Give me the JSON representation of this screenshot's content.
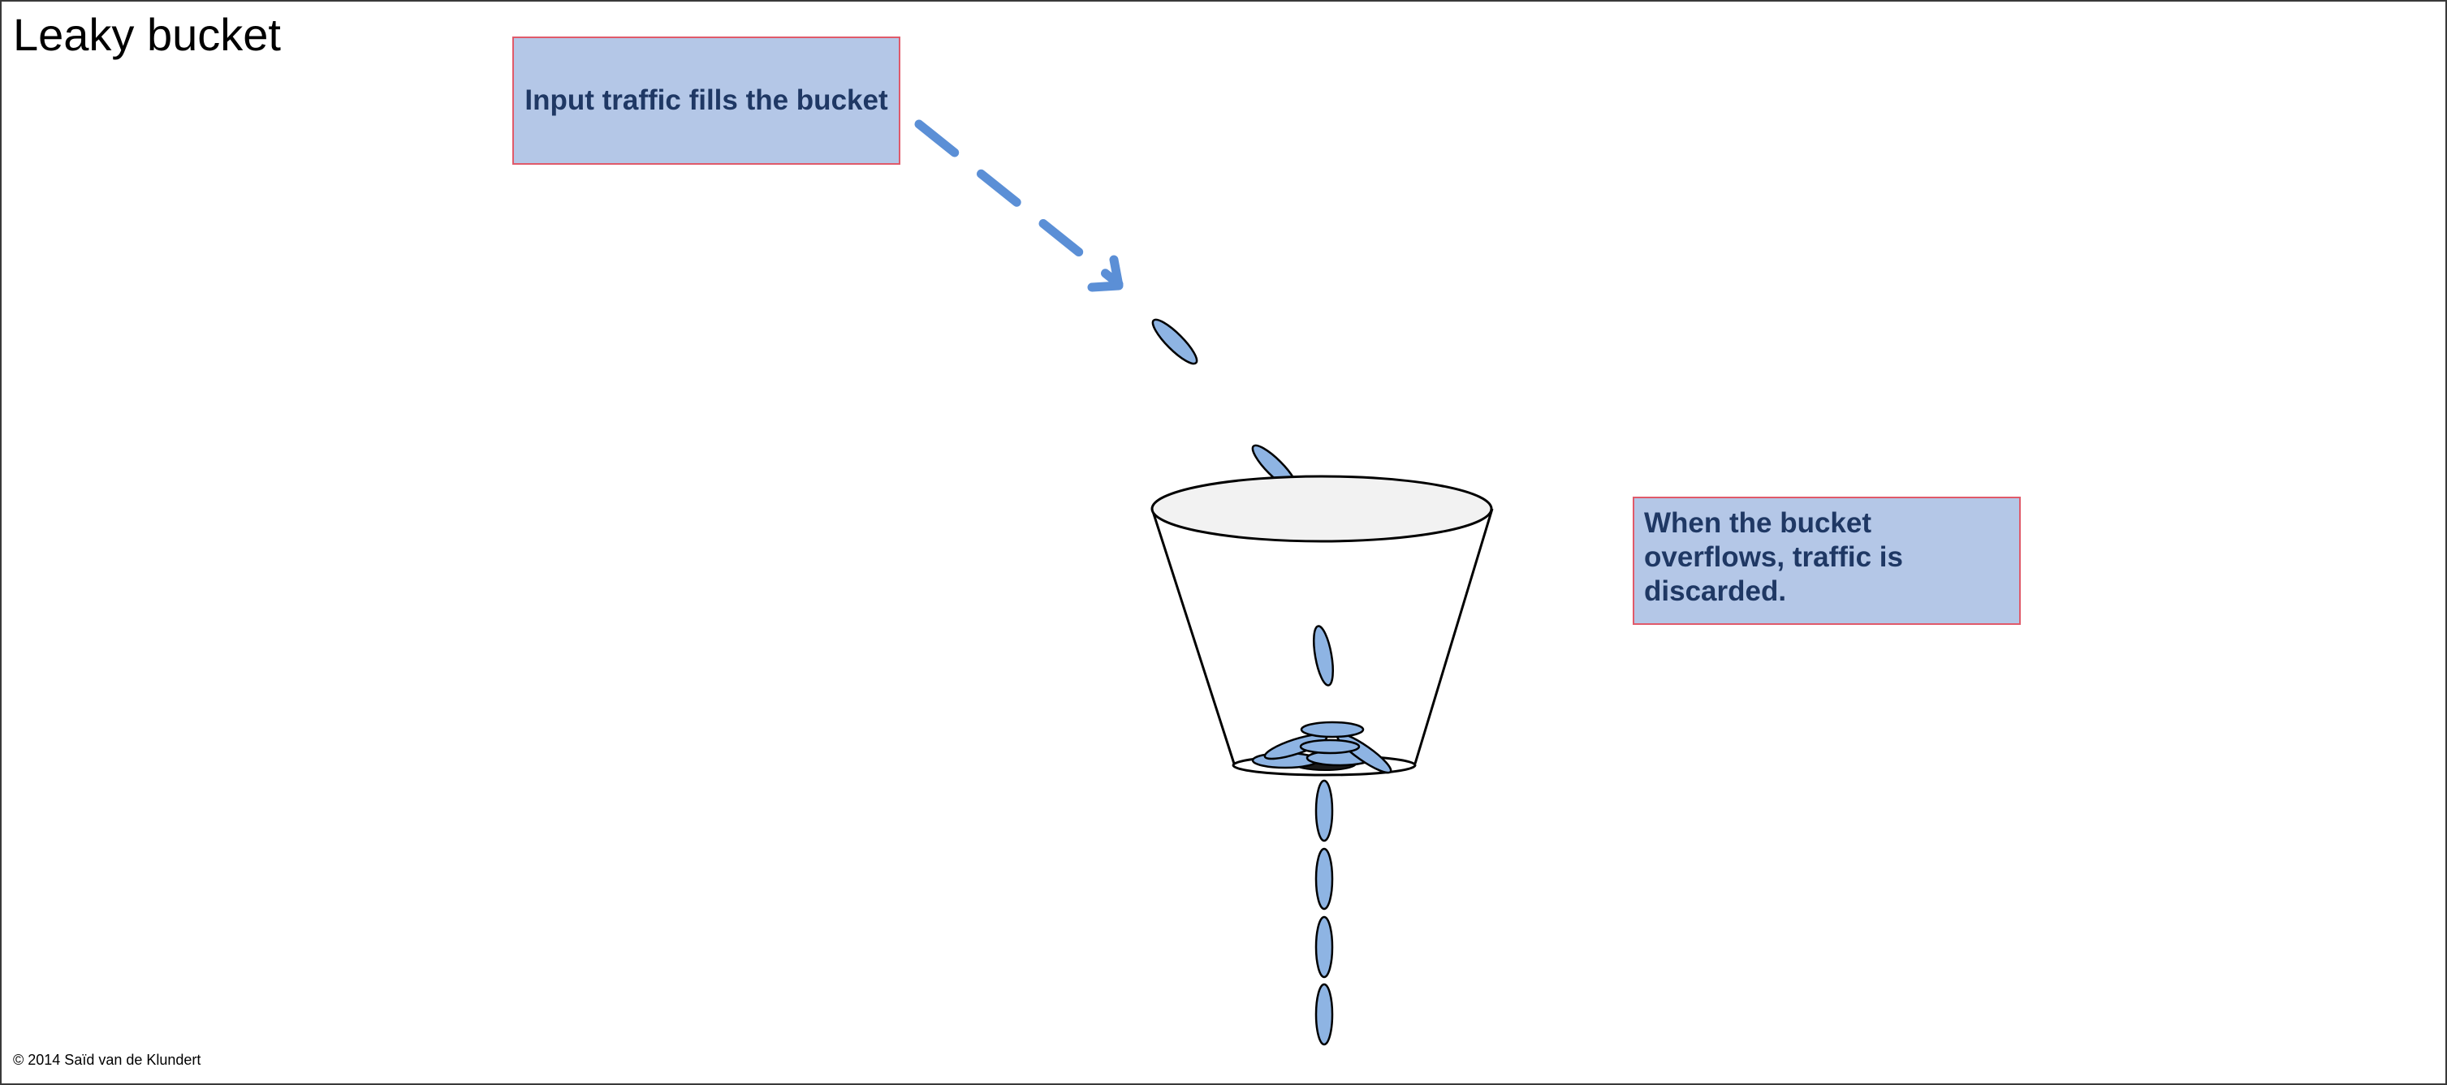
{
  "title": "Leaky bucket",
  "callouts": {
    "input": "Input traffic fills the bucket",
    "overflow": "When the bucket overflows, traffic is discarded."
  },
  "copyright": "© 2014 Saïd van de Klundert",
  "colors": {
    "callout_fill": "#b4c7e7",
    "callout_border": "#e05a6a",
    "callout_text": "#1f3864",
    "arrow": "#5b8fd6",
    "packet_fill": "#8eb4e3",
    "bucket_rim_fill": "#f2f2f2"
  },
  "icons": [
    "dashed-arrow-icon",
    "packet-icon",
    "bucket-icon"
  ]
}
